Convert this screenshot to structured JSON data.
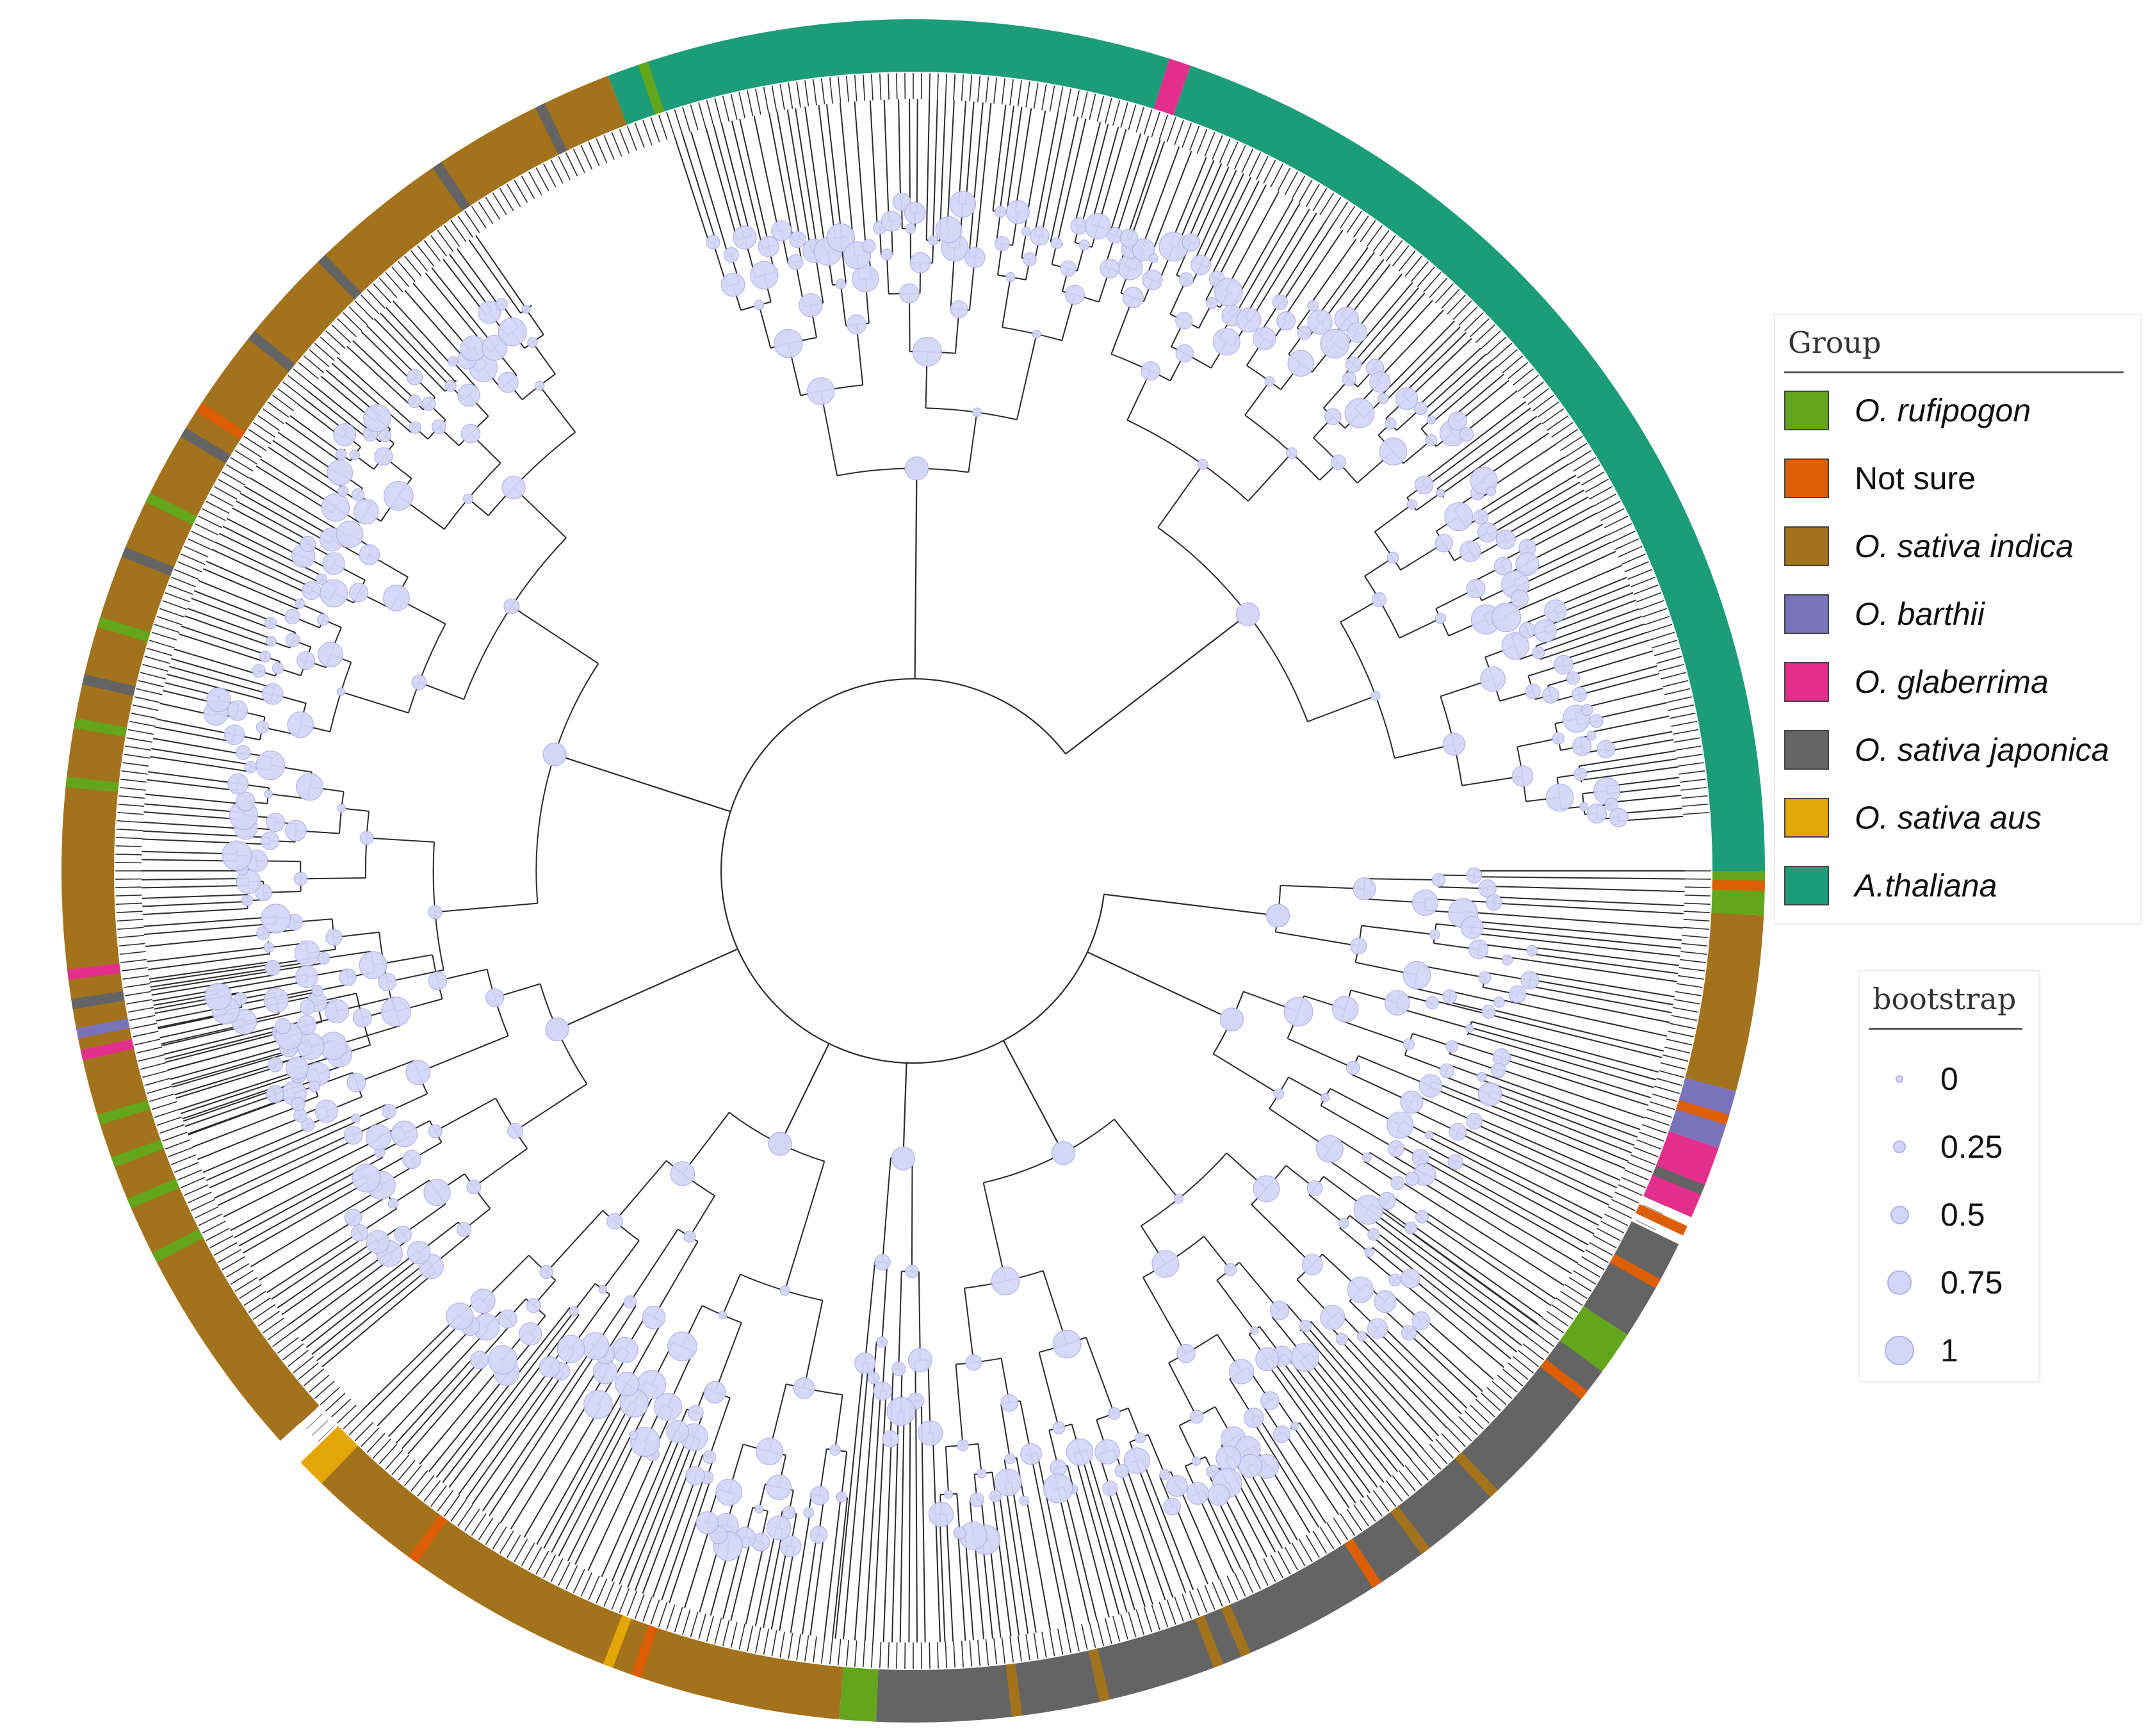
{
  "figure": {
    "description_type": "circular phylogenetic tree",
    "colors": {
      "branch": "#2b2b2b",
      "bootstrap_fill": "#d4d6f7",
      "bootstrap_stroke": "#aeb2ea",
      "background": "#ffffff"
    }
  },
  "group_legend": {
    "title": "Group",
    "items": [
      {
        "label": "O. rufipogon",
        "color": "#63a51b",
        "italic": true
      },
      {
        "label": "Not sure",
        "color": "#dd5e06",
        "italic": false
      },
      {
        "label": "O. sativa indica",
        "color": "#a3721c",
        "italic": true
      },
      {
        "label": "O. barthii",
        "color": "#7b73b9",
        "italic": true
      },
      {
        "label": "O. glaberrima",
        "color": "#e22f8c",
        "italic": true
      },
      {
        "label": "O. sativa japonica",
        "color": "#646464",
        "italic": true
      },
      {
        "label": "O. sativa aus",
        "color": "#e4a606",
        "italic": true
      },
      {
        "label": "A.thaliana",
        "color": "#1c9d78",
        "italic": true
      }
    ]
  },
  "bootstrap_legend": {
    "title": "bootstrap",
    "items": [
      {
        "label": "0",
        "value": 0
      },
      {
        "label": "0.25",
        "value": 0.25
      },
      {
        "label": "0.5",
        "value": 0.5
      },
      {
        "label": "0.75",
        "value": 0.75
      },
      {
        "label": "1",
        "value": 1
      }
    ]
  },
  "ring_segments": [
    {
      "group": "A.thaliana",
      "start_deg": 289,
      "end_deg": 360
    },
    {
      "group": "O. glaberrima",
      "start_deg": 287.5,
      "end_deg": 289
    },
    {
      "group": "A.thaliana",
      "start_deg": 249,
      "end_deg": 287.5
    },
    {
      "group": "O. sativa indica",
      "start_deg": 138,
      "end_deg": 249
    },
    {
      "group": "O. sativa aus",
      "start_deg": 134,
      "end_deg": 136
    },
    {
      "group": "O. sativa indica",
      "start_deg": 95,
      "end_deg": 134
    },
    {
      "group": "O. rufipogon",
      "start_deg": 92.5,
      "end_deg": 95
    },
    {
      "group": "O. sativa japonica",
      "start_deg": 36,
      "end_deg": 92.5
    },
    {
      "group": "O. rufipogon",
      "start_deg": 33,
      "end_deg": 36
    },
    {
      "group": "O. sativa japonica",
      "start_deg": 26,
      "end_deg": 33
    },
    {
      "group": "O. glaberrima",
      "start_deg": 19,
      "end_deg": 24
    },
    {
      "group": "O. barthii",
      "start_deg": 15,
      "end_deg": 19
    },
    {
      "group": "O. sativa indica",
      "start_deg": 3,
      "end_deg": 15
    },
    {
      "group": "O. rufipogon",
      "start_deg": 0,
      "end_deg": 3
    }
  ],
  "ring_stripes": [
    {
      "group": "O. rufipogon",
      "deg": 251.5
    },
    {
      "group": "O. sativa japonica",
      "deg": 244
    },
    {
      "group": "O. sativa japonica",
      "deg": 236
    },
    {
      "group": "O. sativa japonica",
      "deg": 226
    },
    {
      "group": "O. sativa japonica",
      "deg": 219
    },
    {
      "group": "Not sure",
      "deg": 213
    },
    {
      "group": "O. sativa japonica",
      "deg": 211
    },
    {
      "group": "O. rufipogon",
      "deg": 206
    },
    {
      "group": "O. sativa japonica",
      "deg": 202
    },
    {
      "group": "O. rufipogon",
      "deg": 197
    },
    {
      "group": "O. sativa japonica",
      "deg": 193
    },
    {
      "group": "O. rufipogon",
      "deg": 190
    },
    {
      "group": "O. rufipogon",
      "deg": 186
    },
    {
      "group": "O. glaberrima",
      "deg": 173
    },
    {
      "group": "O. sativa japonica",
      "deg": 171
    },
    {
      "group": "O. barthii",
      "deg": 169
    },
    {
      "group": "O. glaberrima",
      "deg": 167.5
    },
    {
      "group": "O. rufipogon",
      "deg": 163
    },
    {
      "group": "O. rufipogon",
      "deg": 160
    },
    {
      "group": "O. rufipogon",
      "deg": 157
    },
    {
      "group": "O. rufipogon",
      "deg": 153
    },
    {
      "group": "Not sure",
      "deg": 126
    },
    {
      "group": "O. sativa aus",
      "deg": 111
    },
    {
      "group": "Not sure",
      "deg": 109
    },
    {
      "group": "O. sativa indica",
      "deg": 83
    },
    {
      "group": "O. sativa indica",
      "deg": 77
    },
    {
      "group": "O. sativa indica",
      "deg": 69
    },
    {
      "group": "O. sativa indica",
      "deg": 67
    },
    {
      "group": "Not sure",
      "deg": 57
    },
    {
      "group": "O. sativa indica",
      "deg": 53
    },
    {
      "group": "O. sativa indica",
      "deg": 47
    },
    {
      "group": "Not sure",
      "deg": 38
    },
    {
      "group": "O. rufipogon",
      "deg": 35
    },
    {
      "group": "Not sure",
      "deg": 29
    },
    {
      "group": "Not sure",
      "deg": 25
    },
    {
      "group": "O. sativa japonica",
      "deg": 22
    },
    {
      "group": "Not sure",
      "deg": 17
    },
    {
      "group": "O. rufipogon",
      "deg": 2
    },
    {
      "group": "Not sure",
      "deg": 1
    }
  ],
  "tree": {
    "clades": [
      {
        "start_deg": 289,
        "end_deg": 356,
        "depth": 0.72
      },
      {
        "start_deg": 252,
        "end_deg": 289,
        "depth": 0.66
      },
      {
        "start_deg": 160,
        "end_deg": 236,
        "depth": 0.58
      },
      {
        "start_deg": 140,
        "end_deg": 172,
        "depth": 0.62
      },
      {
        "start_deg": 96,
        "end_deg": 136,
        "depth": 0.35
      },
      {
        "start_deg": 88,
        "end_deg": 96,
        "depth": 0.3
      },
      {
        "start_deg": 36,
        "end_deg": 88,
        "depth": 0.4
      },
      {
        "start_deg": 14,
        "end_deg": 36,
        "depth": 0.5
      },
      {
        "start_deg": 0,
        "end_deg": 14,
        "depth": 0.55
      }
    ]
  }
}
